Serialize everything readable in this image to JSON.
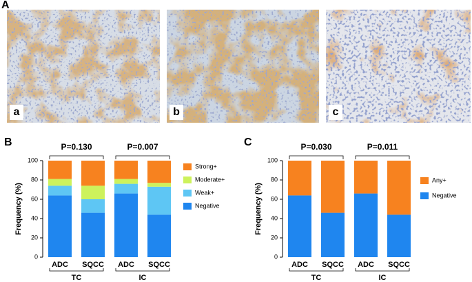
{
  "panels": {
    "label": "A",
    "images": [
      "a",
      "b",
      "c"
    ]
  },
  "chart_data": [
    {
      "type": "bar",
      "stacked": true,
      "panel": "B",
      "ylabel": "Frequency (%)",
      "categories": [
        "ADC",
        "SQCC",
        "ADC",
        "SQCC"
      ],
      "groups": [
        "TC",
        "IC"
      ],
      "annotations": [
        "P=0.130",
        "P=0.007"
      ],
      "series": [
        {
          "name": "Negative",
          "color": "#1f86ef",
          "values": [
            64,
            46,
            66,
            44
          ]
        },
        {
          "name": "Weak+",
          "color": "#5ec6f4",
          "values": [
            10,
            14,
            10,
            29
          ]
        },
        {
          "name": "Moderate+",
          "color": "#cdf25c",
          "values": [
            7,
            14,
            5,
            4
          ]
        },
        {
          "name": "Strong+",
          "color": "#f7821f",
          "values": [
            19,
            26,
            19,
            23
          ]
        }
      ],
      "ylim": [
        0,
        100
      ],
      "yticks": [
        0,
        20,
        40,
        60,
        80,
        100
      ],
      "legend": "right"
    },
    {
      "type": "bar",
      "stacked": true,
      "panel": "C",
      "ylabel": "Frequency (%)",
      "categories": [
        "ADC",
        "SQCC",
        "ADC",
        "SQCC"
      ],
      "groups": [
        "TC",
        "IC"
      ],
      "annotations": [
        "P=0.030",
        "P=0.011"
      ],
      "series": [
        {
          "name": "Negative",
          "color": "#1f86ef",
          "values": [
            64,
            46,
            66,
            44
          ]
        },
        {
          "name": "Any+",
          "color": "#f7821f",
          "values": [
            36,
            54,
            34,
            56
          ]
        }
      ],
      "ylim": [
        0,
        100
      ],
      "yticks": [
        0,
        20,
        40,
        60,
        80,
        100
      ],
      "legend": "right"
    }
  ]
}
